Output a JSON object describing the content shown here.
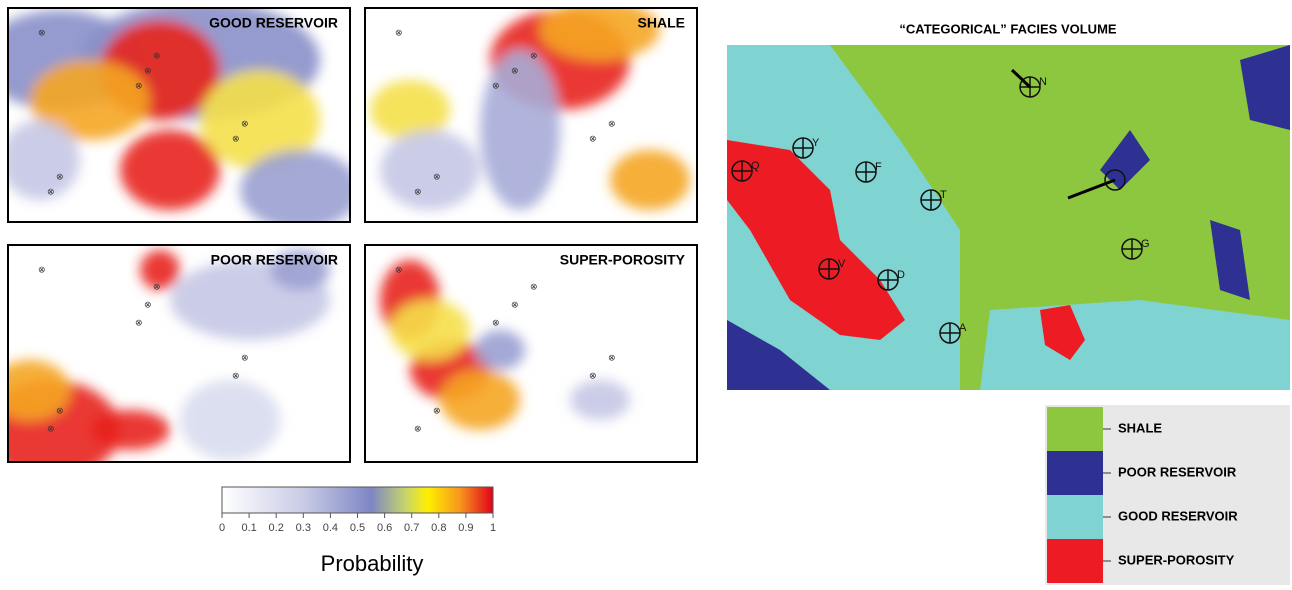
{
  "panels": [
    {
      "title": "GOOD RESERVOIR"
    },
    {
      "title": "SHALE"
    },
    {
      "title": "POOR RESERVOIR"
    },
    {
      "title": "SUPER-POROSITY"
    }
  ],
  "colorbar": {
    "label": "Probability",
    "lim": [
      0,
      1
    ],
    "ticks": [
      0,
      0.1,
      0.2,
      0.3,
      0.4,
      0.5,
      0.6,
      0.7,
      0.8,
      0.9,
      1
    ]
  },
  "facies_volume": {
    "title": "“CATEGORICAL” FACIES VOLUME",
    "wells": [
      "N",
      "Y",
      "Q",
      "F",
      "T",
      "G",
      "V",
      "D",
      "A"
    ],
    "legend": [
      {
        "name": "SHALE",
        "color": "#8dc63f"
      },
      {
        "name": "POOR RESERVOIR",
        "color": "#2e3192"
      },
      {
        "name": "GOOD RESERVOIR",
        "color": "#7fd3d0"
      },
      {
        "name": "SUPER-POROSITY",
        "color": "#ed1c24"
      }
    ]
  }
}
